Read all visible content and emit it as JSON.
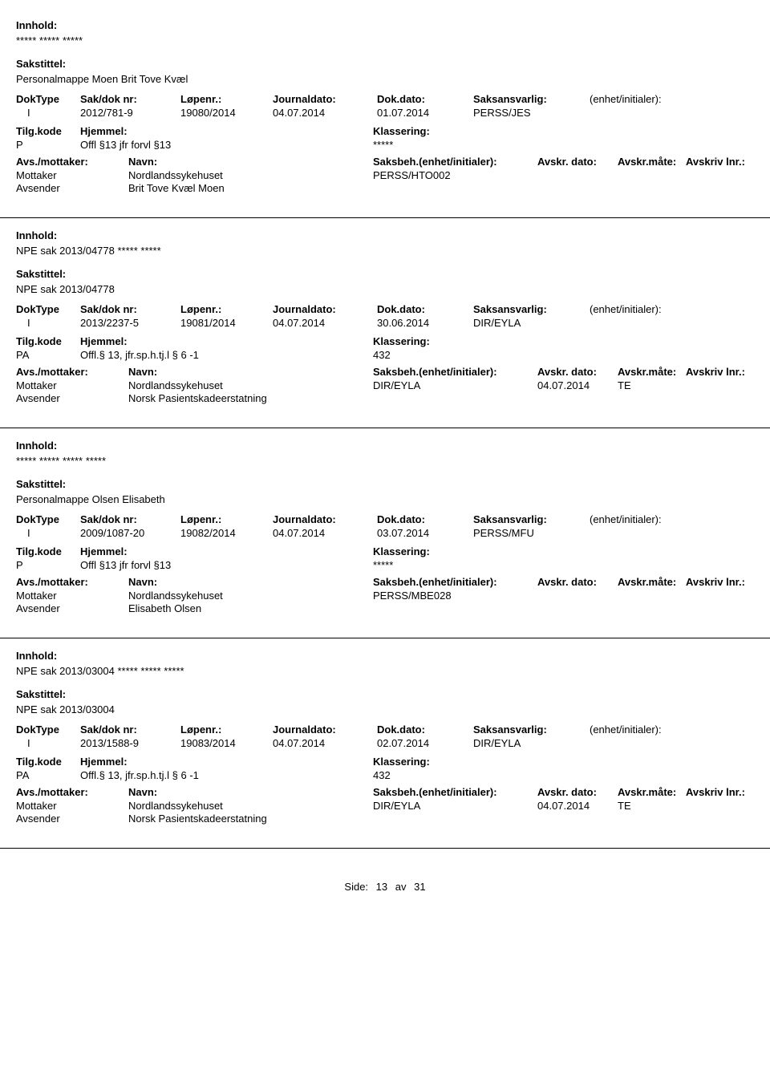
{
  "labels": {
    "innhold": "Innhold:",
    "sakstittel": "Sakstittel:",
    "doktype": "DokType",
    "sakdok": "Sak/dok nr:",
    "lopenr": "Løpenr.:",
    "journaldato": "Journaldato:",
    "dokdato": "Dok.dato:",
    "saksansvarlig": "Saksansvarlig:",
    "enhet": "(enhet/initialer):",
    "tilgkode": "Tilg.kode",
    "hjemmel": "Hjemmel:",
    "klassering": "Klassering:",
    "avsmottaker": "Avs./mottaker:",
    "navn": "Navn:",
    "saksbeh": "Saksbeh.(enhet/initialer):",
    "avskrdato": "Avskr. dato:",
    "avskrmate": "Avskr.måte:",
    "avskrivlnr": "Avskriv lnr.:",
    "mottaker": "Mottaker",
    "avsender": "Avsender"
  },
  "footer": {
    "side": "Side:",
    "page": "13",
    "av": "av",
    "total": "31"
  },
  "entries": [
    {
      "innhold": "***** ***** *****",
      "sakstittel": "Personalmappe Moen Brit Tove Kvæl",
      "doktype": "I",
      "sakdok": "2012/781-9",
      "lopenr": "19080/2014",
      "journaldato": "04.07.2014",
      "dokdato": "01.07.2014",
      "saksansvarlig": "PERSS/JES",
      "enhet": "",
      "tilgkode": "P",
      "hjemmel": "Offl §13 jfr forvl §13",
      "klassering": "*****",
      "saksbeh": "PERSS/HTO002",
      "avskrdato": "",
      "avskrmate": "",
      "mottaker_navn": "Nordlandssykehuset",
      "avsender_navn": "Brit Tove Kvæl Moen"
    },
    {
      "innhold": "NPE sak 2013/04778 ***** *****",
      "sakstittel": "NPE sak 2013/04778",
      "doktype": "I",
      "sakdok": "2013/2237-5",
      "lopenr": "19081/2014",
      "journaldato": "04.07.2014",
      "dokdato": "30.06.2014",
      "saksansvarlig": "DIR/EYLA",
      "enhet": "",
      "tilgkode": "PA",
      "hjemmel": "Offl.§ 13, jfr.sp.h.tj.l § 6 -1",
      "klassering": "432",
      "saksbeh": "DIR/EYLA",
      "avskrdato": "04.07.2014",
      "avskrmate": "TE",
      "mottaker_navn": "Nordlandssykehuset",
      "avsender_navn": "Norsk Pasientskadeerstatning"
    },
    {
      "innhold": "***** ***** ***** *****",
      "sakstittel": "Personalmappe Olsen Elisabeth",
      "doktype": "I",
      "sakdok": "2009/1087-20",
      "lopenr": "19082/2014",
      "journaldato": "04.07.2014",
      "dokdato": "03.07.2014",
      "saksansvarlig": "PERSS/MFU",
      "enhet": "",
      "tilgkode": "P",
      "hjemmel": "Offl §13 jfr forvl §13",
      "klassering": "*****",
      "saksbeh": "PERSS/MBE028",
      "avskrdato": "",
      "avskrmate": "",
      "mottaker_navn": "Nordlandssykehuset",
      "avsender_navn": "Elisabeth Olsen"
    },
    {
      "innhold": "NPE sak 2013/03004 ***** ***** *****",
      "sakstittel": "NPE sak 2013/03004",
      "doktype": "I",
      "sakdok": "2013/1588-9",
      "lopenr": "19083/2014",
      "journaldato": "04.07.2014",
      "dokdato": "02.07.2014",
      "saksansvarlig": "DIR/EYLA",
      "enhet": "",
      "tilgkode": "PA",
      "hjemmel": "Offl.§ 13, jfr.sp.h.tj.l § 6 -1",
      "klassering": "432",
      "saksbeh": "DIR/EYLA",
      "avskrdato": "04.07.2014",
      "avskrmate": "TE",
      "mottaker_navn": "Nordlandssykehuset",
      "avsender_navn": "Norsk Pasientskadeerstatning"
    }
  ]
}
